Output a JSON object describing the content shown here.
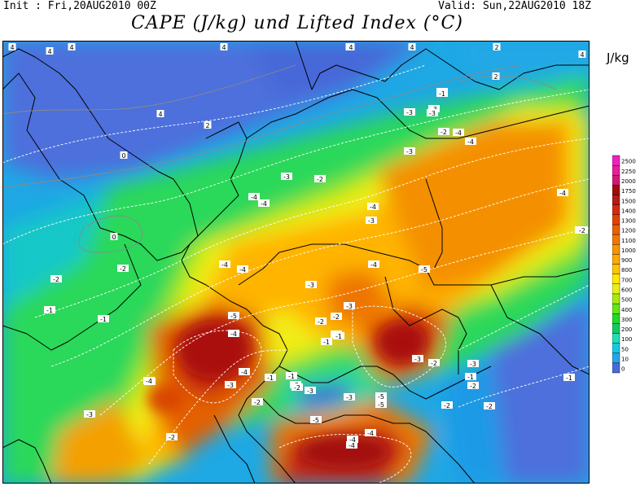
{
  "header": {
    "init": "Init : Fri,20AUG2010 00Z",
    "valid": "Valid: Sun,22AUG2010 18Z",
    "title": "CAPE (J/kg) und Lifted Index (°C)"
  },
  "legend": {
    "unit": "J/kg",
    "levels": [
      "0",
      "10",
      "50",
      "100",
      "200",
      "300",
      "400",
      "500",
      "600",
      "700",
      "800",
      "900",
      "1000",
      "1100",
      "1200",
      "1300",
      "1400",
      "1500",
      "1750",
      "2000",
      "2250",
      "2500"
    ],
    "colors": [
      "#4a6ad8",
      "#28a4e8",
      "#18c8e0",
      "#1ee0b4",
      "#14c864",
      "#22d828",
      "#64e614",
      "#a8ea10",
      "#e8f018",
      "#ffe800",
      "#ffc400",
      "#ffa800",
      "#f89400",
      "#f07800",
      "#e86000",
      "#e04400",
      "#d42a10",
      "#b81818",
      "#a00c0c",
      "#d01878",
      "#e81c9c",
      "#f020c0"
    ]
  },
  "lifted_index_labels": [
    "4",
    "4",
    "4",
    "2",
    "4",
    "2",
    "4",
    "-1",
    "4",
    "2",
    "4",
    "0",
    "4",
    "2",
    "0",
    "-2",
    "-3",
    "-2",
    "-4",
    "-4",
    "-3",
    "-4",
    "-4",
    "-4",
    "-3",
    "-2",
    "-4",
    "-2",
    "-1",
    "-1",
    "-1",
    "-2",
    "-2",
    "-3",
    "-4",
    "-5",
    "-3",
    "-4",
    "-3",
    "-2",
    "-4",
    "-5",
    "-3",
    "-2",
    "-3",
    "-4",
    "-3",
    "-2",
    "-1",
    "-2",
    "-5",
    "-3",
    "-4",
    "-4",
    "-5",
    "-4",
    "-1",
    "-3",
    "-2",
    "-4",
    "-4",
    "-2",
    "-1",
    "-3",
    "-3",
    "-2",
    "-3",
    "-5",
    "-5",
    "-2",
    "-1",
    "-4",
    "-3",
    "-2",
    "-2",
    "-1",
    "-1"
  ]
}
